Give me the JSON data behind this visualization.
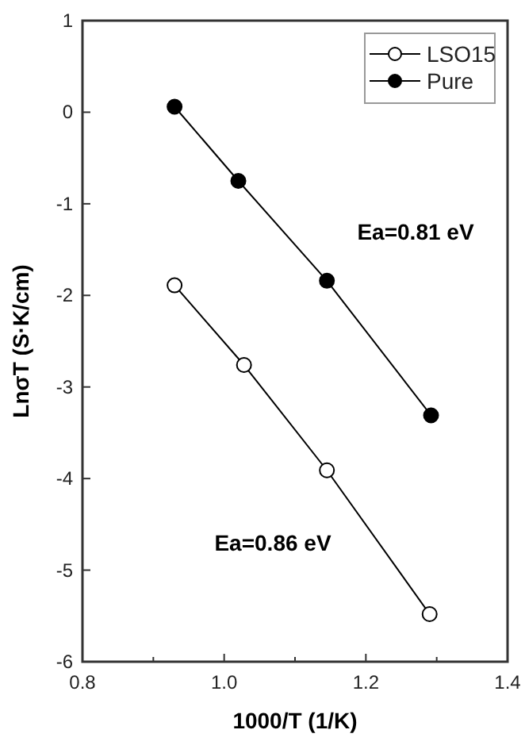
{
  "chart_data": {
    "type": "line",
    "xlabel": "1000/T (1/K)",
    "ylabel": "LnσT (S·K/cm)",
    "xlim": [
      0.8,
      1.4
    ],
    "xticks": [
      {
        "value": 0.8,
        "label": "0.8"
      },
      {
        "value": 0.9,
        "label": null
      },
      {
        "value": 1.0,
        "label": "1.0"
      },
      {
        "value": 1.1,
        "label": null
      },
      {
        "value": 1.2,
        "label": "1.2"
      },
      {
        "value": 1.3,
        "label": null
      },
      {
        "value": 1.4,
        "label": "1.4"
      }
    ],
    "ylim": [
      -6,
      1
    ],
    "yticks": [
      -6,
      -5,
      -4,
      -3,
      -2,
      -1,
      0,
      1
    ],
    "x": [
      0.93,
      1.02,
      1.145,
      1.292
    ],
    "series": [
      {
        "name": "LSO15",
        "color": "#000000",
        "marker": "circle-open",
        "x": [
          0.93,
          1.028,
          1.145,
          1.29
        ],
        "values": [
          -1.89,
          -2.76,
          -3.91,
          -5.48
        ]
      },
      {
        "name": "Pure",
        "color": "#000000",
        "marker": "circle",
        "values": [
          0.06,
          -0.75,
          -1.84,
          -3.31
        ]
      }
    ],
    "annotations": [
      "Ea=0.81 eV",
      "Ea=0.86 eV"
    ],
    "legend": "top right",
    "line_style": "solid",
    "grid": false
  }
}
